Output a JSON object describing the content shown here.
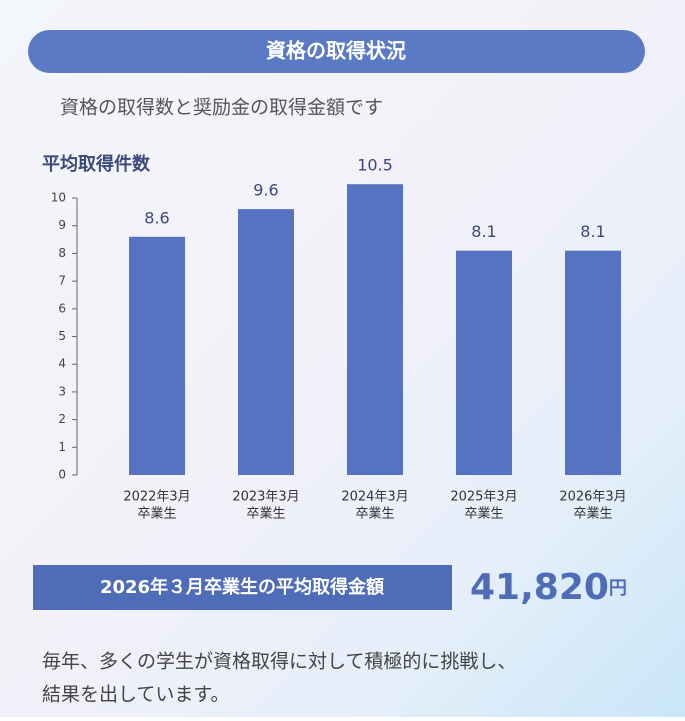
{
  "header": {
    "title": "資格の取得状況",
    "subtitle": "資格の取得数と奨励金の取得金額です"
  },
  "chart_data": {
    "type": "bar",
    "y_label": "平均取得件数",
    "categories": [
      [
        "2022年3月",
        "卒業生"
      ],
      [
        "2023年3月",
        "卒業生"
      ],
      [
        "2024年3月",
        "卒業生"
      ],
      [
        "2025年3月",
        "卒業生"
      ],
      [
        "2026年3月",
        "卒業生"
      ]
    ],
    "values": [
      8.6,
      9.6,
      10.5,
      8.1,
      8.1
    ],
    "color": "#5573c0",
    "ylim": [
      0,
      10.5
    ],
    "yticks": [
      0,
      1,
      2,
      3,
      4,
      5,
      6,
      7,
      8,
      9,
      10
    ],
    "grid": false
  },
  "summary": {
    "label": "2026年３月卒業生の平均取得金額",
    "amount": "41,820",
    "unit": "円"
  },
  "footer": {
    "lines": [
      "毎年、多くの学生が資格取得に対して積極的に挑戦し、",
      "結果を出しています。"
    ]
  }
}
